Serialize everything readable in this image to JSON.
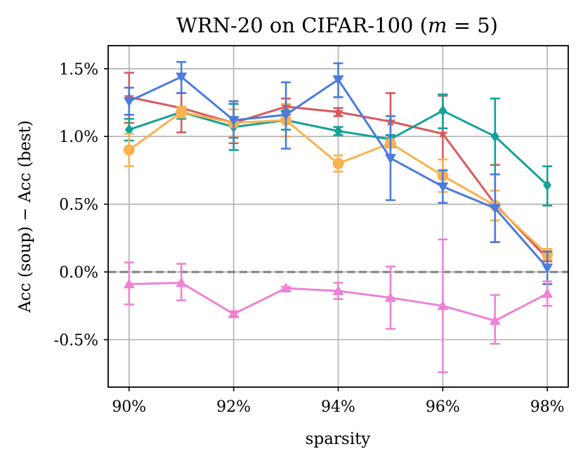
{
  "chart_data": {
    "type": "line",
    "title": "WRN-20 on CIFAR-100 (m = 5)",
    "title_parts": [
      "WRN-20 on CIFAR-100 (",
      "m",
      " = 5)"
    ],
    "xlabel": "sparsity",
    "ylabel": "Acc (soup) − Acc (best)",
    "x": [
      90,
      91,
      92,
      93,
      94,
      95,
      96,
      97,
      98
    ],
    "xlim": [
      89.6,
      98.4
    ],
    "ylim": [
      -0.85,
      1.67
    ],
    "xticks": [
      90,
      92,
      94,
      96,
      98
    ],
    "xtick_labels": [
      "90%",
      "92%",
      "94%",
      "96%",
      "98%"
    ],
    "yticks": [
      -0.5,
      0.0,
      0.5,
      1.0,
      1.5
    ],
    "ytick_labels": [
      "-0.5%",
      "0.0%",
      "0.5%",
      "1.0%",
      "1.5%"
    ],
    "grid": true,
    "reference_line": {
      "y": 0.0,
      "style": "dashed",
      "color": "#808080"
    },
    "series": [
      {
        "name": "red",
        "color": "#d9595b",
        "marker": "star",
        "values": [
          1.29,
          1.21,
          1.1,
          1.22,
          1.18,
          1.11,
          1.02,
          0.5,
          0.1
        ],
        "err_low": [
          1.1,
          1.03,
          0.95,
          1.16,
          1.15,
          0.92,
          0.75,
          0.22,
          0.08
        ],
        "err_high": [
          1.47,
          1.32,
          1.24,
          1.28,
          1.21,
          1.32,
          1.3,
          0.79,
          0.13
        ]
      },
      {
        "name": "teal",
        "color": "#14a198",
        "marker": "diamond",
        "values": [
          1.05,
          1.18,
          1.07,
          1.12,
          1.04,
          0.98,
          1.19,
          1.0,
          0.64
        ],
        "err_low": [
          0.97,
          1.13,
          0.9,
          1.05,
          1.01,
          0.95,
          1.06,
          0.72,
          0.49
        ],
        "err_high": [
          1.13,
          1.22,
          1.24,
          1.19,
          1.07,
          1.01,
          1.31,
          1.28,
          0.78
        ]
      },
      {
        "name": "orange",
        "color": "#f9b24f",
        "marker": "circle",
        "values": [
          0.9,
          1.18,
          1.1,
          1.12,
          0.8,
          0.95,
          0.71,
          0.49,
          0.13
        ],
        "err_low": [
          0.78,
          1.14,
          1.0,
          1.0,
          0.74,
          0.94,
          0.59,
          0.38,
          0.09
        ],
        "err_high": [
          1.02,
          1.22,
          1.2,
          1.24,
          0.86,
          0.96,
          0.83,
          0.6,
          0.17
        ]
      },
      {
        "name": "blue",
        "color": "#4a7bdd",
        "marker": "triangle-down",
        "values": [
          1.26,
          1.44,
          1.12,
          1.16,
          1.42,
          0.84,
          0.63,
          0.47,
          0.03
        ],
        "err_low": [
          1.16,
          1.32,
          0.99,
          0.91,
          1.29,
          0.53,
          0.51,
          0.22,
          -0.09
        ],
        "err_high": [
          1.36,
          1.55,
          1.26,
          1.4,
          1.54,
          1.15,
          0.75,
          0.72,
          0.15
        ]
      },
      {
        "name": "pink",
        "color": "#ee82d6",
        "marker": "triangle-up",
        "values": [
          -0.09,
          -0.08,
          -0.31,
          -0.12,
          -0.14,
          -0.19,
          -0.25,
          -0.36,
          -0.16
        ],
        "err_low": [
          -0.24,
          -0.21,
          -0.33,
          -0.13,
          -0.2,
          -0.42,
          -0.74,
          -0.53,
          -0.25
        ],
        "err_high": [
          0.07,
          0.06,
          -0.29,
          -0.11,
          -0.08,
          0.04,
          0.24,
          -0.17,
          -0.07
        ]
      }
    ]
  }
}
